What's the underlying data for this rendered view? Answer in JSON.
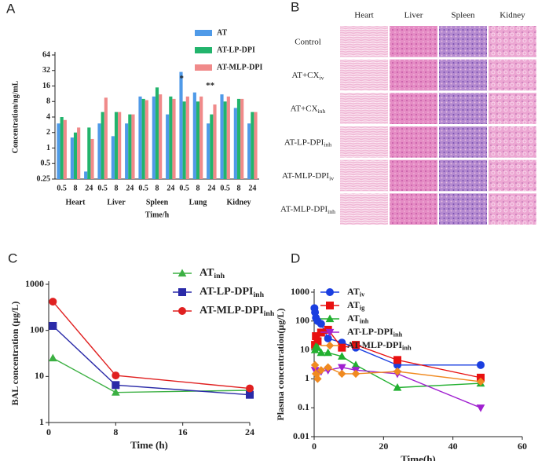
{
  "chart_data": [
    {
      "type": "bar",
      "panel": "A",
      "y_label": "Concentration/ng/mL",
      "x_label": "Time/h",
      "log_scale": true,
      "categories": [
        "0.5",
        "8",
        "24",
        "0.5",
        "8",
        "24",
        "0.5",
        "8",
        "24",
        "0.5",
        "8",
        "24",
        "0.5",
        "8",
        "24"
      ],
      "groups": [
        "Heart",
        "Liver",
        "Spleen",
        "Lung",
        "Kidney"
      ],
      "ylim": [
        0.25,
        64
      ],
      "yticks": [
        0.25,
        0.5,
        1,
        2,
        4,
        8,
        16,
        32,
        64
      ],
      "series": [
        {
          "name": "AT",
          "color": "#4f9ae8",
          "values": [
            3,
            1.6,
            0.35,
            3,
            1.7,
            3,
            10,
            10,
            4.5,
            30,
            12,
            3,
            11,
            6,
            3
          ]
        },
        {
          "name": "AT-LP-DPI",
          "color": "#22b46c",
          "values": [
            4,
            2,
            2.5,
            5,
            5,
            4.5,
            9,
            15,
            10,
            8,
            8,
            4.5,
            8,
            9,
            5
          ]
        },
        {
          "name": "AT-MLP-DPI",
          "color": "#f08a8a",
          "values": [
            3.5,
            2.5,
            1.5,
            9.5,
            5,
            4.5,
            8.5,
            11,
            9,
            10,
            10,
            7,
            10,
            9,
            5
          ]
        }
      ],
      "annotations": [
        "*",
        "**"
      ]
    },
    {
      "type": "image-grid",
      "panel": "B",
      "columns": [
        "Heart",
        "Liver",
        "Spleen",
        "Kidney"
      ],
      "rows": [
        {
          "name": "Control"
        },
        {
          "name": "AT+CX",
          "sub": "iv"
        },
        {
          "name": "AT+CX",
          "sub": "inh"
        },
        {
          "name": "AT-LP-DPI",
          "sub": "inh"
        },
        {
          "name": "AT-MLP-DPI",
          "sub": "iv"
        },
        {
          "name": "AT-MLP-DPI",
          "sub": "inh"
        }
      ]
    },
    {
      "type": "line",
      "panel": "C",
      "y_label": "BAL concentration (μg/L)",
      "x_label": "Time (h)",
      "log_scale": true,
      "x": [
        0.5,
        8,
        24
      ],
      "xlim": [
        0,
        24
      ],
      "xticks": [
        0,
        8,
        16,
        24
      ],
      "ylim": [
        1,
        1000
      ],
      "yticks": [
        1,
        10,
        100,
        1000
      ],
      "series": [
        {
          "name": "AT",
          "sub": "inh",
          "color": "#3cb043",
          "marker": "triangle",
          "values": [
            25,
            4.5,
            5
          ]
        },
        {
          "name": "AT-LP-DPI",
          "sub": "inh",
          "color": "#2a2aa8",
          "marker": "square",
          "values": [
            125,
            6.5,
            4
          ]
        },
        {
          "name": "AT-MLP-DPI",
          "sub": "inh",
          "color": "#e02020",
          "marker": "circle",
          "values": [
            420,
            10.5,
            5.5
          ]
        }
      ]
    },
    {
      "type": "line",
      "panel": "D",
      "y_label": "Plasma concentration(μg/L)",
      "x_label": "Time(h)",
      "log_scale": true,
      "xlim": [
        0,
        60
      ],
      "xticks": [
        0,
        20,
        40,
        60
      ],
      "ylim": [
        0.01,
        1000
      ],
      "yticks": [
        0.01,
        0.1,
        1,
        10,
        100,
        1000
      ],
      "series": [
        {
          "name": "AT",
          "sub": "iv",
          "color": "#1a3ee0",
          "marker": "circle",
          "x": [
            0.083,
            0.25,
            0.5,
            1,
            2,
            4,
            8,
            12,
            24,
            48
          ],
          "values": [
            280,
            200,
            130,
            100,
            80,
            25,
            18,
            12,
            3,
            3
          ]
        },
        {
          "name": "AT",
          "sub": "ig",
          "color": "#e81010",
          "marker": "square",
          "x": [
            0.25,
            0.5,
            1,
            2,
            4,
            8,
            12,
            24,
            48
          ],
          "values": [
            15,
            30,
            20,
            40,
            50,
            12,
            15,
            4.5,
            1.1
          ]
        },
        {
          "name": "AT",
          "sub": "inh",
          "color": "#22b030",
          "marker": "triangle",
          "x": [
            0.25,
            0.5,
            1,
            2,
            4,
            8,
            12,
            24,
            48
          ],
          "values": [
            10,
            13,
            12,
            8,
            8,
            6,
            3,
            0.5,
            0.7
          ]
        },
        {
          "name": "AT-LP-DPI",
          "sub": "inh",
          "color": "#a020d0",
          "marker": "triangle-down",
          "x": [
            0.25,
            0.5,
            1,
            2,
            4,
            8,
            12,
            24,
            48
          ],
          "values": [
            2,
            1.8,
            1.6,
            1.8,
            2,
            2.5,
            2,
            1.5,
            0.1
          ]
        },
        {
          "name": "AT-MLP-DPI",
          "sub": "inh",
          "color": "#f08a20",
          "marker": "diamond",
          "x": [
            0.25,
            0.5,
            1,
            2,
            4,
            8,
            12,
            24,
            48
          ],
          "values": [
            3,
            1.5,
            1,
            2,
            2.5,
            1.5,
            1.5,
            1.8,
            0.8
          ]
        }
      ]
    }
  ]
}
